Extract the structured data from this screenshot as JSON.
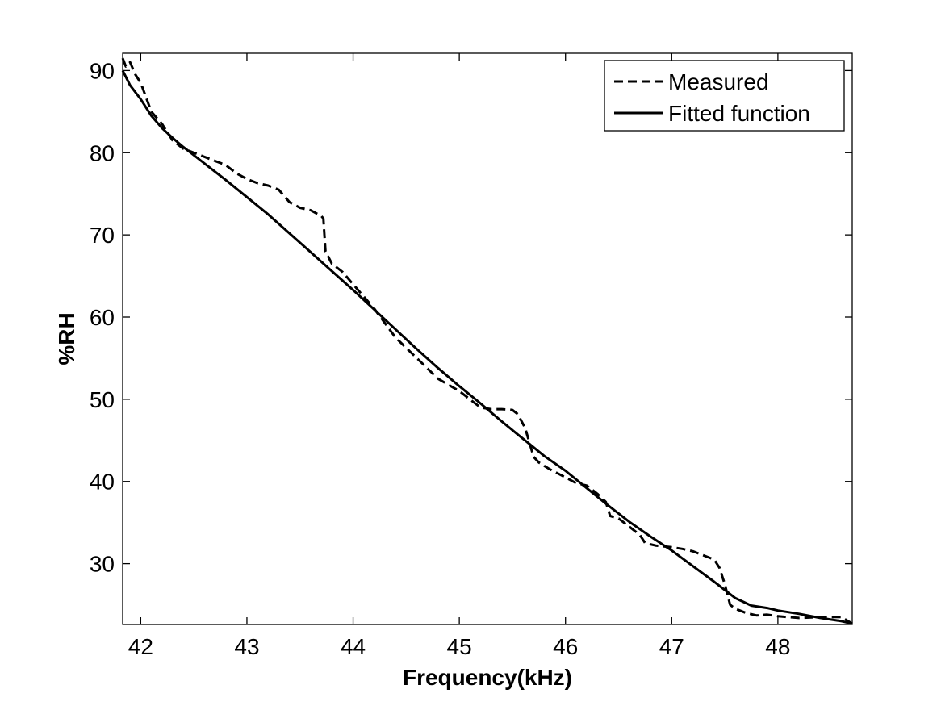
{
  "chart_data": {
    "type": "line",
    "title": "",
    "xlabel": "Frequency(kHz)",
    "ylabel": "%RH",
    "xlim": [
      41.83,
      48.7
    ],
    "ylim": [
      22.6,
      92.1
    ],
    "x_ticks": [
      42,
      43,
      44,
      45,
      46,
      47,
      48
    ],
    "y_ticks": [
      30,
      40,
      50,
      60,
      70,
      80,
      90
    ],
    "x_tick_labels": [
      "42",
      "43",
      "44",
      "45",
      "46",
      "47",
      "48"
    ],
    "y_tick_labels": [
      "30",
      "40",
      "50",
      "60",
      "70",
      "80",
      "90"
    ],
    "grid": false,
    "legend_position": "top-right",
    "series": [
      {
        "name": "Measured",
        "style": "dashed",
        "color": "#000000",
        "x": [
          41.83,
          41.86,
          41.9,
          41.95,
          42.0,
          42.1,
          42.2,
          42.3,
          42.4,
          42.5,
          42.6,
          42.7,
          42.8,
          42.9,
          43.0,
          43.1,
          43.2,
          43.3,
          43.4,
          43.5,
          43.6,
          43.7,
          43.72,
          43.73,
          43.74,
          43.8,
          43.9,
          44.0,
          44.2,
          44.4,
          44.6,
          44.8,
          45.0,
          45.2,
          45.3,
          45.4,
          45.5,
          45.55,
          45.62,
          45.7,
          45.75,
          45.85,
          46.0,
          46.1,
          46.2,
          46.3,
          46.38,
          46.42,
          46.5,
          46.6,
          46.7,
          46.75,
          46.85,
          47.0,
          47.1,
          47.2,
          47.3,
          47.4,
          47.45,
          47.5,
          47.55,
          47.6,
          47.7,
          47.8,
          47.9,
          48.0,
          48.2,
          48.4,
          48.6,
          48.7
        ],
        "y": [
          91.5,
          90.5,
          91.0,
          89.5,
          88.5,
          85.0,
          83.5,
          81.5,
          80.5,
          80.0,
          79.5,
          79.0,
          78.5,
          77.5,
          76.8,
          76.3,
          76.0,
          75.5,
          74.0,
          73.3,
          73.0,
          72.3,
          72.0,
          70.0,
          68.0,
          66.5,
          65.5,
          64.0,
          61.0,
          57.5,
          55.0,
          52.5,
          51.0,
          49.0,
          48.8,
          48.8,
          48.7,
          48.2,
          46.5,
          43.0,
          42.3,
          41.5,
          40.5,
          39.8,
          39.5,
          38.5,
          37.5,
          35.8,
          35.5,
          34.5,
          33.5,
          32.5,
          32.2,
          32.0,
          31.8,
          31.5,
          31.0,
          30.5,
          29.5,
          27.5,
          25.0,
          24.5,
          24.0,
          23.7,
          23.8,
          23.6,
          23.4,
          23.5,
          23.5,
          22.7
        ]
      },
      {
        "name": "Fitted function",
        "style": "solid",
        "color": "#000000",
        "x": [
          41.83,
          41.9,
          42.0,
          42.1,
          42.2,
          42.3,
          42.4,
          42.6,
          42.8,
          43.0,
          43.2,
          43.4,
          43.6,
          43.8,
          44.0,
          44.2,
          44.4,
          44.6,
          44.8,
          45.0,
          45.2,
          45.4,
          45.6,
          45.8,
          46.0,
          46.2,
          46.4,
          46.6,
          46.8,
          47.0,
          47.2,
          47.4,
          47.6,
          47.75,
          47.9,
          48.0,
          48.2,
          48.4,
          48.6,
          48.7
        ],
        "y": [
          90.0,
          88.2,
          86.5,
          84.5,
          83.0,
          81.8,
          80.7,
          78.7,
          76.7,
          74.6,
          72.5,
          70.2,
          67.9,
          65.6,
          63.3,
          60.9,
          58.5,
          56.1,
          53.8,
          51.6,
          49.5,
          47.3,
          45.2,
          43.1,
          41.3,
          39.2,
          37.1,
          35.1,
          33.3,
          31.6,
          29.7,
          27.8,
          25.8,
          24.9,
          24.6,
          24.3,
          23.9,
          23.4,
          23.0,
          22.7
        ]
      }
    ]
  }
}
